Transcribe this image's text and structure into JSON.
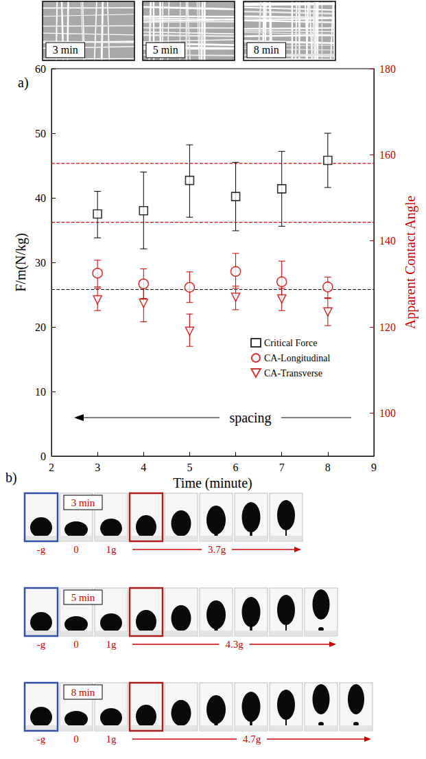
{
  "images": [
    {
      "label": "3 min"
    },
    {
      "label": "5 min"
    },
    {
      "label": "8 min"
    }
  ],
  "panel_a": {
    "label": "a)"
  },
  "chart_data": {
    "type": "scatter",
    "x_label": "Time (minute)",
    "y_label": "F/m(N/kg)",
    "y2_label": "Apparent Contact Angle",
    "x": [
      3,
      4,
      5,
      6,
      7,
      8
    ],
    "xlim": [
      2,
      9
    ],
    "xticks": [
      2,
      3,
      4,
      5,
      6,
      7,
      8,
      9
    ],
    "ylim": [
      0,
      60
    ],
    "yticks": [
      0,
      10,
      20,
      30,
      40,
      50,
      60
    ],
    "y2lim": [
      90,
      180
    ],
    "y2ticks": [
      100,
      120,
      140,
      160,
      180
    ],
    "grid": false,
    "legend": "lower right",
    "series": [
      {
        "name": "Critical Force",
        "color": "#000000",
        "marker": "square",
        "values": [
          37.5,
          38,
          42.7,
          40.2,
          41.4,
          45.8
        ],
        "error_bars": [
          [
            33.8,
            41
          ],
          [
            32.1,
            44
          ],
          [
            37,
            48.2
          ],
          [
            34.9,
            45.5
          ],
          [
            35.6,
            47.2
          ],
          [
            41.6,
            50
          ]
        ]
      },
      {
        "name": "CA-Longitudinal",
        "color": "#cc0000",
        "marker": "circle",
        "axis": "y2",
        "values": [
          132.5,
          130,
          129.2,
          132.9,
          130.5,
          129.3
        ],
        "error_bars": [
          [
            129.3,
            135.5
          ],
          [
            126.6,
            133.5
          ],
          [
            125.7,
            132.8
          ],
          [
            129,
            137.1
          ],
          [
            127,
            135.3
          ],
          [
            126.8,
            131.6
          ]
        ]
      },
      {
        "name": "CA-Transverse",
        "color": "#cc0000",
        "marker": "triangle-down",
        "axis": "y2",
        "values": [
          126.3,
          125.5,
          119,
          126.9,
          126.5,
          123.5
        ],
        "error_bars": [
          [
            123.8,
            129
          ],
          [
            121.2,
            129
          ],
          [
            115.5,
            123
          ],
          [
            124,
            129.5
          ],
          [
            123.8,
            129
          ],
          [
            120.3,
            126.6
          ]
        ]
      }
    ],
    "reference_lines": [
      {
        "value": 25.8,
        "color": "#000000",
        "line_style": "dashed"
      },
      {
        "value": 158,
        "axis": "y2",
        "color": "#cc0000",
        "line_style": "dashed"
      },
      {
        "value": 144.3,
        "axis": "y2",
        "color": "#cc0000",
        "line_style": "dashed"
      }
    ],
    "annotations": [
      {
        "text": "spacing"
      }
    ]
  },
  "panel_b": {
    "label": "b)",
    "rows": [
      {
        "title": "3 min",
        "frames": 8,
        "frame_labels": [
          "-g",
          "0",
          "1g"
        ],
        "range_label": "3.7g"
      },
      {
        "title": "5 min",
        "frames": 9,
        "frame_labels": [
          "-g",
          "0",
          "1g"
        ],
        "range_label": "4.3g"
      },
      {
        "title": "8 min",
        "frames": 10,
        "frame_labels": [
          "-g",
          "0",
          "1g"
        ],
        "range_label": "4.7g"
      }
    ]
  }
}
